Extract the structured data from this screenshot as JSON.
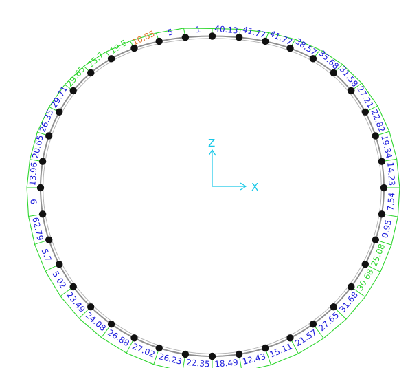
{
  "colors": {
    "background": "#ffffff",
    "ring": "#8f8f8f",
    "envelope": "#2fd62f",
    "node": "#111111",
    "label_blue": "#1a1adb",
    "label_green": "#2fd62f",
    "label_orange": "#e0742a",
    "axis": "#17c8e8"
  },
  "axes": {
    "z_label": "Z",
    "x_label": "X"
  },
  "labels": [
    {
      "text": "40.13",
      "color": "blue"
    },
    {
      "text": "41.77",
      "color": "blue"
    },
    {
      "text": "41.77",
      "color": "blue"
    },
    {
      "text": "38.57",
      "color": "blue"
    },
    {
      "text": "35.68",
      "color": "blue"
    },
    {
      "text": "31.58",
      "color": "blue"
    },
    {
      "text": "27.21",
      "color": "blue"
    },
    {
      "text": "22.82",
      "color": "blue"
    },
    {
      "text": "19.34",
      "color": "blue"
    },
    {
      "text": "14.23",
      "color": "blue"
    },
    {
      "text": "7.54",
      "color": "blue"
    },
    {
      "text": "0.95",
      "color": "blue"
    },
    {
      "text": "25.08",
      "color": "green"
    },
    {
      "text": "30.68",
      "color": "green"
    },
    {
      "text": "31.68",
      "color": "blue"
    },
    {
      "text": "27.65",
      "color": "blue"
    },
    {
      "text": "21.57",
      "color": "blue"
    },
    {
      "text": "15.11",
      "color": "blue"
    },
    {
      "text": "12.43",
      "color": "blue"
    },
    {
      "text": "18.49",
      "color": "blue"
    },
    {
      "text": "22.35",
      "color": "blue"
    },
    {
      "text": "26.23",
      "color": "blue"
    },
    {
      "text": "27.02",
      "color": "blue"
    },
    {
      "text": "26.88",
      "color": "blue"
    },
    {
      "text": "24.08",
      "color": "blue"
    },
    {
      "text": "23.49",
      "color": "blue"
    },
    {
      "text": "5.02",
      "color": "blue"
    },
    {
      "text": "5.7",
      "color": "blue"
    },
    {
      "text": "62.79",
      "color": "blue"
    },
    {
      "text": "6",
      "color": "blue"
    },
    {
      "text": "13.96",
      "color": "blue"
    },
    {
      "text": "20.65",
      "color": "blue"
    },
    {
      "text": "26.35",
      "color": "blue"
    },
    {
      "text": "29.71",
      "color": "blue"
    },
    {
      "text": "29.65",
      "color": "green"
    },
    {
      "text": "25.7",
      "color": "green"
    },
    {
      "text": "19.5",
      "color": "green"
    },
    {
      "text": "10.85",
      "color": "orange"
    },
    {
      "text": "5",
      "color": "blue"
    },
    {
      "text": "1",
      "color": "blue"
    }
  ]
}
